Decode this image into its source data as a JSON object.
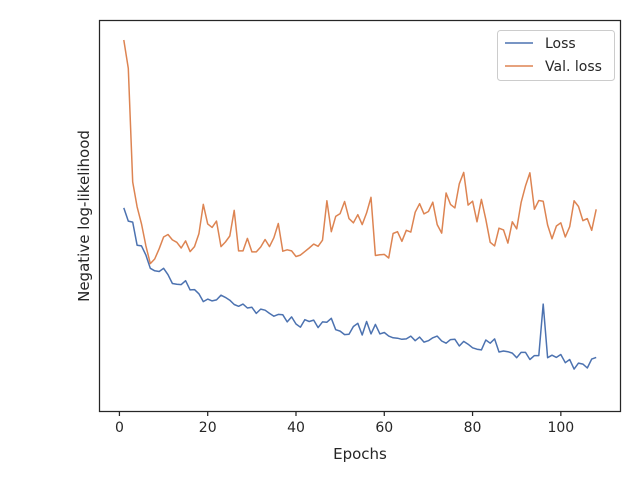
{
  "chart_data": {
    "type": "line",
    "xlabel": "Epochs",
    "ylabel": "Negative log-likelihood",
    "xlim": [
      -4.4,
      113.4
    ],
    "ylim": [
      0,
      1
    ],
    "xticks": [
      0,
      20,
      40,
      60,
      80,
      100
    ],
    "yticks_visible": false,
    "grid": false,
    "legend_position": "top-right",
    "series": [
      {
        "name": "Loss",
        "color": "#4c72b0",
        "x": [
          1,
          2,
          3,
          4,
          5,
          6,
          7,
          8,
          9,
          10,
          11,
          12,
          13,
          14,
          15,
          16,
          17,
          18,
          19,
          20,
          21,
          22,
          23,
          24,
          25,
          26,
          27,
          28,
          29,
          30,
          31,
          32,
          33,
          34,
          35,
          36,
          37,
          38,
          39,
          40,
          41,
          42,
          43,
          44,
          45,
          46,
          47,
          48,
          49,
          50,
          51,
          52,
          53,
          54,
          55,
          56,
          57,
          58,
          59,
          60,
          61,
          62,
          63,
          64,
          65,
          66,
          67,
          68,
          69,
          70,
          71,
          72,
          73,
          74,
          75,
          76,
          77,
          78,
          79,
          80,
          81,
          82,
          83,
          84,
          85,
          86,
          87,
          88,
          89,
          90,
          91,
          92,
          93,
          94,
          95,
          96,
          97,
          98,
          99,
          100,
          101,
          102,
          103,
          104,
          105,
          106,
          107,
          108
        ],
        "values": [
          0.527,
          0.49,
          0.487,
          0.422,
          0.42,
          0.394,
          0.357,
          0.35,
          0.348,
          0.357,
          0.339,
          0.314,
          0.312,
          0.311,
          0.322,
          0.296,
          0.297,
          0.285,
          0.263,
          0.27,
          0.265,
          0.268,
          0.281,
          0.275,
          0.267,
          0.255,
          0.25,
          0.256,
          0.245,
          0.247,
          0.23,
          0.242,
          0.239,
          0.23,
          0.222,
          0.227,
          0.226,
          0.206,
          0.22,
          0.2,
          0.191,
          0.212,
          0.207,
          0.211,
          0.19,
          0.206,
          0.205,
          0.216,
          0.184,
          0.18,
          0.17,
          0.171,
          0.193,
          0.202,
          0.169,
          0.207,
          0.172,
          0.199,
          0.172,
          0.176,
          0.166,
          0.161,
          0.16,
          0.157,
          0.158,
          0.166,
          0.153,
          0.163,
          0.149,
          0.153,
          0.161,
          0.166,
          0.152,
          0.146,
          0.156,
          0.157,
          0.138,
          0.151,
          0.143,
          0.133,
          0.129,
          0.127,
          0.155,
          0.146,
          0.158,
          0.121,
          0.124,
          0.122,
          0.118,
          0.105,
          0.12,
          0.12,
          0.1,
          0.111,
          0.111,
          0.256,
          0.105,
          0.112,
          0.106,
          0.114,
          0.091,
          0.1,
          0.073,
          0.09,
          0.087,
          0.076,
          0.101,
          0.106
        ]
      },
      {
        "name": "Val. loss",
        "color": "#dd8452",
        "x": [
          1,
          2,
          3,
          4,
          5,
          6,
          7,
          8,
          9,
          10,
          11,
          12,
          13,
          14,
          15,
          16,
          17,
          18,
          19,
          20,
          21,
          22,
          23,
          24,
          25,
          26,
          27,
          28,
          29,
          30,
          31,
          32,
          33,
          34,
          35,
          36,
          37,
          38,
          39,
          40,
          41,
          42,
          43,
          44,
          45,
          46,
          47,
          48,
          49,
          50,
          51,
          52,
          53,
          54,
          55,
          56,
          57,
          58,
          59,
          60,
          61,
          62,
          63,
          64,
          65,
          66,
          67,
          68,
          69,
          70,
          71,
          72,
          73,
          74,
          75,
          76,
          77,
          78,
          79,
          80,
          81,
          82,
          83,
          84,
          85,
          86,
          87,
          88,
          89,
          90,
          91,
          92,
          93,
          94,
          95,
          96,
          97,
          98,
          99,
          100,
          101,
          102,
          103,
          104,
          105,
          106,
          107,
          108
        ],
        "values": [
          1.0,
          0.92,
          0.6,
          0.53,
          0.482,
          0.42,
          0.37,
          0.383,
          0.412,
          0.445,
          0.452,
          0.437,
          0.43,
          0.414,
          0.434,
          0.404,
          0.418,
          0.454,
          0.537,
          0.482,
          0.472,
          0.49,
          0.418,
          0.431,
          0.448,
          0.52,
          0.406,
          0.406,
          0.441,
          0.403,
          0.403,
          0.417,
          0.438,
          0.418,
          0.443,
          0.483,
          0.405,
          0.409,
          0.406,
          0.39,
          0.394,
          0.404,
          0.414,
          0.425,
          0.419,
          0.436,
          0.547,
          0.46,
          0.503,
          0.511,
          0.545,
          0.497,
          0.485,
          0.508,
          0.48,
          0.513,
          0.557,
          0.393,
          0.395,
          0.396,
          0.386,
          0.455,
          0.46,
          0.433,
          0.464,
          0.459,
          0.515,
          0.539,
          0.51,
          0.517,
          0.543,
          0.48,
          0.456,
          0.569,
          0.537,
          0.527,
          0.595,
          0.627,
          0.535,
          0.546,
          0.488,
          0.551,
          0.495,
          0.43,
          0.42,
          0.47,
          0.465,
          0.428,
          0.488,
          0.468,
          0.542,
          0.589,
          0.626,
          0.523,
          0.548,
          0.546,
          0.479,
          0.44,
          0.476,
          0.485,
          0.445,
          0.474,
          0.547,
          0.531,
          0.491,
          0.497,
          0.464,
          0.523
        ]
      }
    ]
  }
}
